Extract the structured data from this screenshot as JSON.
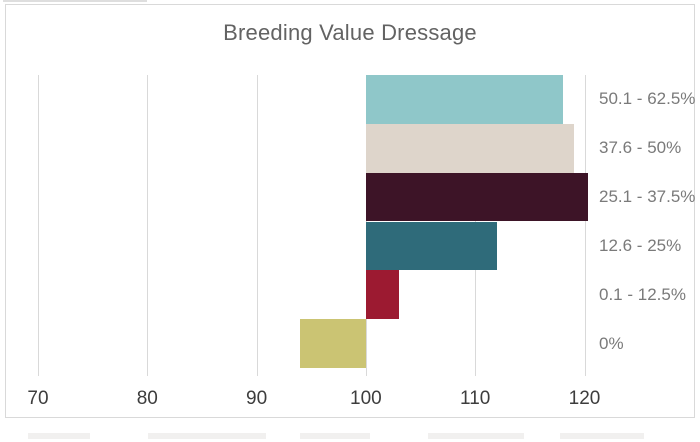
{
  "chart_data": {
    "type": "bar",
    "orientation": "horizontal",
    "title": "Breeding Value Dressage",
    "categories": [
      "50.1 - 62.5%",
      "37.6 - 50%",
      "25.1 - 37.5%",
      "12.6 - 25%",
      "0.1 - 12.5%",
      "0%"
    ],
    "values": [
      118,
      119,
      120.3,
      112,
      103,
      94
    ],
    "baseline": 100,
    "xlabel": "",
    "ylabel": "",
    "xlim": [
      70,
      120
    ],
    "x_ticks": [
      "70",
      "80",
      "90",
      "100",
      "110",
      "120"
    ],
    "grid": true,
    "legend_position": "none",
    "bar_colors": [
      "#8fc7c9",
      "#ded5cb",
      "#3d1427",
      "#2f6b7a",
      "#9c1a31",
      "#cbc473"
    ],
    "colors": {
      "title_text": "#636363",
      "category_label_text": "#7a7a7a",
      "tick_label_text": "#3d3d3d",
      "gridline": "#d9d9d9",
      "frame_border": "#d9d9d9",
      "background": "#ffffff"
    }
  }
}
